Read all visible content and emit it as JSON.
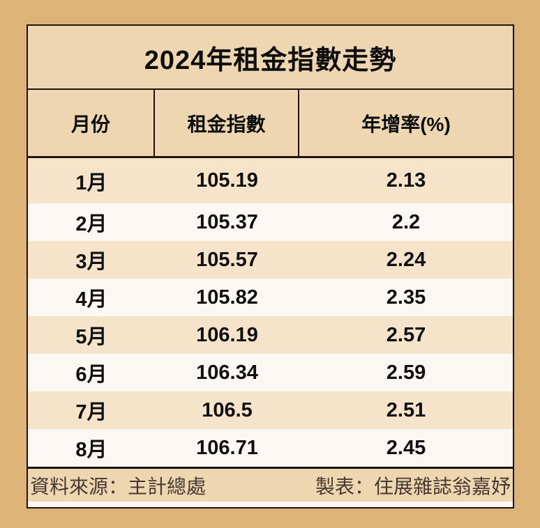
{
  "title": "2024年租金指數走勢",
  "table": {
    "columns": [
      "月份",
      "租金指數",
      "年增率(%)"
    ],
    "rows": [
      {
        "month": "1月",
        "index": "105.19",
        "yoy": "2.13"
      },
      {
        "month": "2月",
        "index": "105.37",
        "yoy": "2.2"
      },
      {
        "month": "3月",
        "index": "105.57",
        "yoy": "2.24"
      },
      {
        "month": "4月",
        "index": "105.82",
        "yoy": "2.35"
      },
      {
        "month": "5月",
        "index": "106.19",
        "yoy": "2.57"
      },
      {
        "month": "6月",
        "index": "106.34",
        "yoy": "2.59"
      },
      {
        "month": "7月",
        "index": "106.5",
        "yoy": "2.51"
      },
      {
        "month": "8月",
        "index": "106.71",
        "yoy": "2.45"
      }
    ]
  },
  "footer": {
    "source": "資料來源：主計總處",
    "credit": "製表：住展雜誌翁嘉妤"
  },
  "colors": {
    "page_background": "#ddb377",
    "panel_background": "#eed6b0",
    "row_odd": "#f5e3ca",
    "row_even": "#fbf8f4",
    "border": "#1e120a",
    "text": "#101010",
    "footer_text": "#463931"
  },
  "chart_data": {
    "type": "table",
    "title": "2024年租金指數走勢",
    "columns": [
      "月份",
      "租金指數",
      "年增率(%)"
    ],
    "months": [
      "1月",
      "2月",
      "3月",
      "4月",
      "5月",
      "6月",
      "7月",
      "8月"
    ],
    "rent_index": [
      105.19,
      105.37,
      105.57,
      105.82,
      106.19,
      106.34,
      106.5,
      106.71
    ],
    "yoy_percent": [
      2.13,
      2.2,
      2.24,
      2.35,
      2.57,
      2.59,
      2.51,
      2.45
    ],
    "source": "資料來源：主計總處",
    "credit": "製表：住展雜誌翁嘉妤",
    "layout": "striped rows, header with vertical dividers, footer source/credit band"
  }
}
